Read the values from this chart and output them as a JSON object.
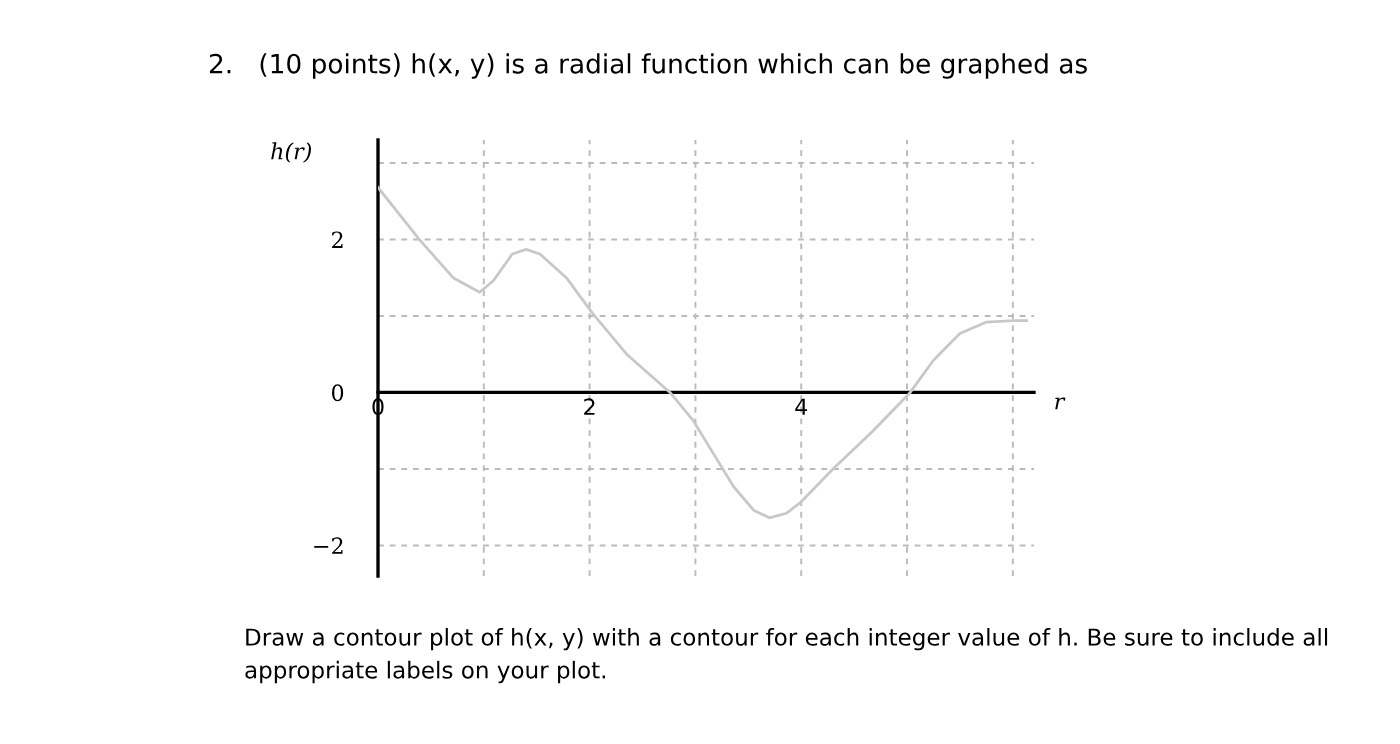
{
  "chart_data": {
    "type": "line",
    "title": "2.   (10 points) h(x, y) is a radial function which can be graphed as",
    "xlabel": "r",
    "ylabel": "h(r)",
    "annotations": [
      "Draw a contour plot of h(x, y) with a contour for each integer value of h. Be sure to include all appropriate labels on your plot."
    ],
    "x": [
      0,
      0.39,
      0.71,
      0.96,
      1.09,
      1.27,
      1.4,
      1.53,
      1.78,
      2.03,
      2.35,
      2.76,
      2.98,
      3.17,
      3.36,
      3.55,
      3.7,
      3.86,
      4.0,
      4.3,
      4.68,
      5.03,
      5.25,
      5.5,
      5.75,
      6.01,
      6.13
    ],
    "series": [
      {
        "color": "#c8c8c8",
        "values": [
          2.68,
          2.0,
          1.5,
          1.31,
          1.46,
          1.81,
          1.87,
          1.81,
          1.5,
          1.03,
          0.5,
          0,
          -0.37,
          -0.8,
          -1.23,
          -1.54,
          -1.64,
          -1.58,
          -1.43,
          -1.0,
          -0.5,
          0,
          0.42,
          0.77,
          0.92,
          0.94,
          0.94
        ]
      }
    ],
    "xlim": [
      0,
      6.2
    ],
    "ylim": [
      -2.4,
      3.3
    ],
    "xticks": [
      0,
      {
        "value": 1,
        "label": null
      },
      2,
      {
        "value": 3,
        "label": null
      },
      4,
      {
        "value": 5,
        "label": null
      },
      {
        "value": 6,
        "label": null
      }
    ],
    "yticks": [
      {
        "value": -2,
        "label": "−2"
      },
      {
        "value": -1,
        "label": null
      },
      0,
      {
        "value": 1,
        "label": null
      },
      2,
      {
        "value": 3,
        "label": null
      }
    ],
    "grid": true,
    "line_style": "solid",
    "marker": "none",
    "legend": false
  }
}
